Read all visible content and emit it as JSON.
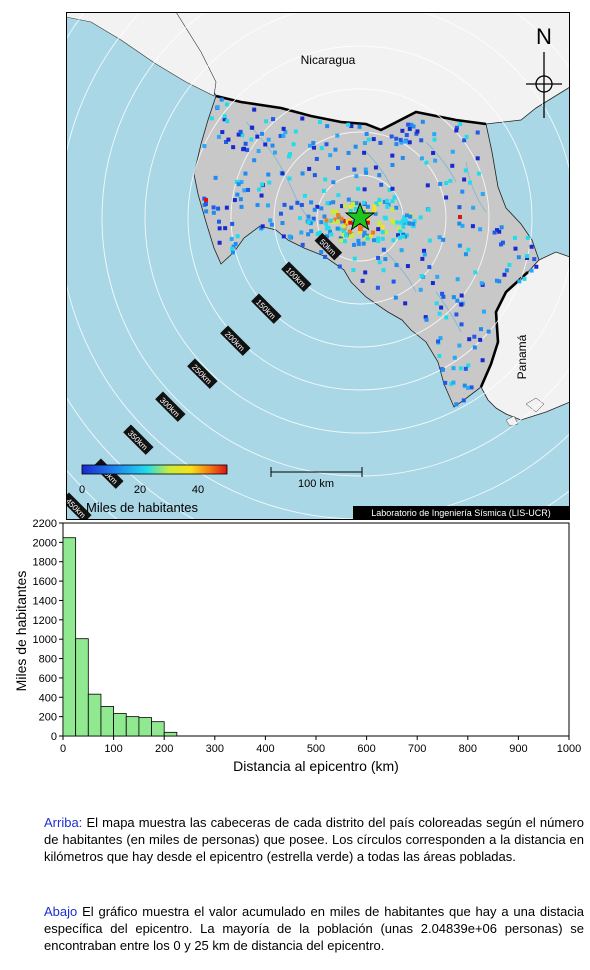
{
  "map": {
    "country_labels": [
      "Nicaragua",
      "Panamá"
    ],
    "north_label": "N",
    "scale_bar_label": "100 km",
    "credit": "Laboratorio de Ingeniería Sísmica (LIS-UCR)",
    "ring_labels": [
      "50km",
      "100km",
      "150km",
      "200km",
      "250km",
      "300km",
      "350km",
      "400km",
      "450km"
    ],
    "colorbar": {
      "title": "Miles de habitantes",
      "tick_labels": [
        "0",
        "20",
        "40"
      ],
      "range": [
        0,
        50
      ]
    },
    "colors": {
      "sea": "#a9d7e6",
      "land_costa_rica": "#c8c8c8",
      "land_neighbors": "#f2f2f2",
      "epicenter_star": "#1fc41f"
    },
    "epicenter_marker": "star"
  },
  "chart_data": {
    "type": "bar",
    "xlabel": "Distancia al epicentro (km)",
    "ylabel": "Miles de habitantes",
    "bin_width": 25,
    "x": [
      0,
      25,
      50,
      75,
      100,
      125,
      150,
      175,
      200
    ],
    "values": [
      2048,
      1005,
      432,
      305,
      232,
      200,
      190,
      148,
      38
    ],
    "xlim": [
      0,
      1000
    ],
    "ylim": [
      0,
      2200
    ],
    "x_ticks": [
      0,
      100,
      200,
      300,
      400,
      500,
      600,
      700,
      800,
      900,
      1000
    ],
    "y_ticks": [
      0,
      200,
      400,
      600,
      800,
      1000,
      1200,
      1400,
      1600,
      1800,
      2000,
      2200
    ],
    "bar_color": "#90e890",
    "grid": false
  },
  "captions": {
    "top_lead": "Arriba:",
    "top_text": " El mapa muestra las cabeceras de cada distrito del país coloreadas según el número de habitantes (en miles de personas) que posee. Los círculos corresponden a la distancia en kilómetros que hay desde el epicentro (estrella verde) a todas las áreas pobladas.",
    "bottom_lead": "Abajo",
    "bottom_text": " El gráfico muestra el valor acumulado en miles de habitantes que hay a una distacia específica del epicentro. La mayoría de la población (unas 2.04839e+06 personas) se encontraban entre los 0 y 25 km de distancia del epicentro."
  }
}
